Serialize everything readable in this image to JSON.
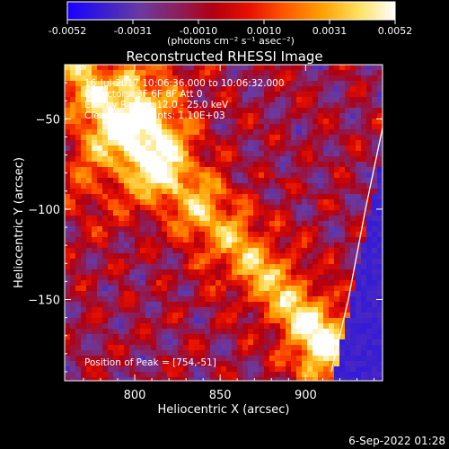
{
  "colorbar": {
    "ticks": [
      "-0.0052",
      "-0.0031",
      "-0.0010",
      "0.0010",
      "0.0031",
      "0.0052"
    ],
    "unit_label": "(photons cm⁻² s⁻¹ asec⁻²)",
    "stops": [
      "#1a00ff",
      "#3a1fd0",
      "#6a3aa0",
      "#8a2060",
      "#b00010",
      "#e81000",
      "#ff5a00",
      "#ffa000",
      "#ffe060",
      "#ffffff"
    ]
  },
  "footer": {
    "timestamp": "6-Sep-2022 01:28"
  },
  "chart_data": {
    "type": "heatmap",
    "title": "Reconstructed RHESSI Image",
    "xlabel": "Heliocentric X (arcsec)",
    "ylabel": "Heliocentric Y (arcsec)",
    "xlim": [
      759,
      945
    ],
    "ylim": [
      -195,
      -20
    ],
    "xticks": [
      {
        "value": 800,
        "label": "800"
      },
      {
        "value": 850,
        "label": "850"
      },
      {
        "value": 900,
        "label": "900"
      }
    ],
    "yticks": [
      {
        "value": -50,
        "label": "−50"
      },
      {
        "value": -100,
        "label": "−100"
      },
      {
        "value": -150,
        "label": "−150"
      }
    ],
    "annotations": [
      "16-Jul-2017 10:06:36.000 to 10:06:32.000",
      "Detectors: 3F 6F 8F  Att 0",
      "Energy Range: 12.0 - 25.0 keV",
      "Clean     Total Counts: 1.10E+03"
    ],
    "peak_label": "Position of Peak = [754,-51]",
    "peak": [
      754,
      -51
    ],
    "colorbar_range": [
      -0.0052,
      0.0052
    ],
    "limb_curve": [
      [
        945,
        -55
      ],
      [
        935,
        -100
      ],
      [
        925,
        -150
      ],
      [
        915,
        -190
      ]
    ]
  }
}
